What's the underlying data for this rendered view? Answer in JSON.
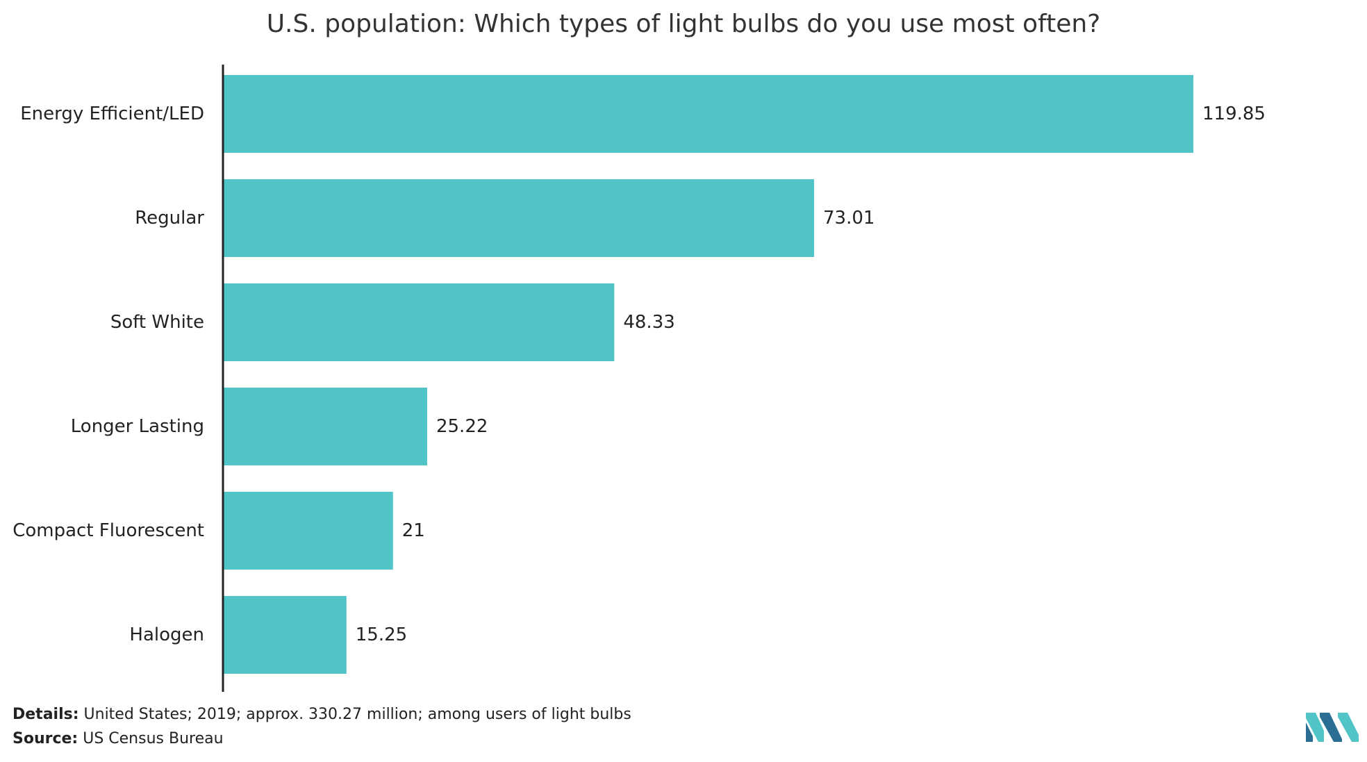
{
  "chart_data": {
    "type": "bar",
    "orientation": "horizontal",
    "title": "U.S. population: Which types of light bulbs do you use most often?",
    "categories": [
      "Energy Efficient/LED",
      "Regular",
      "Soft White",
      "Longer Lasting",
      "Compact Fluorescent",
      "Halogen"
    ],
    "values": [
      119.85,
      73.01,
      48.33,
      25.22,
      21,
      15.25
    ],
    "value_labels": [
      "119.85",
      "73.01",
      "48.33",
      "25.22",
      "21",
      "15.25"
    ],
    "xlim": [
      0,
      119.85
    ],
    "grid": false,
    "legend": "none",
    "bar_color": "#51c4c8",
    "axis_color": "#222222"
  },
  "footer": {
    "details_label": "Details:",
    "details_text": " United States; 2019; approx. 330.27 million; among users of light bulbs",
    "source_label": "Source:",
    "source_text": " US Census Bureau"
  },
  "logo": {
    "icon": "mordor-intelligence-logo",
    "colors": [
      "#51c4c8",
      "#2a6f93"
    ]
  }
}
